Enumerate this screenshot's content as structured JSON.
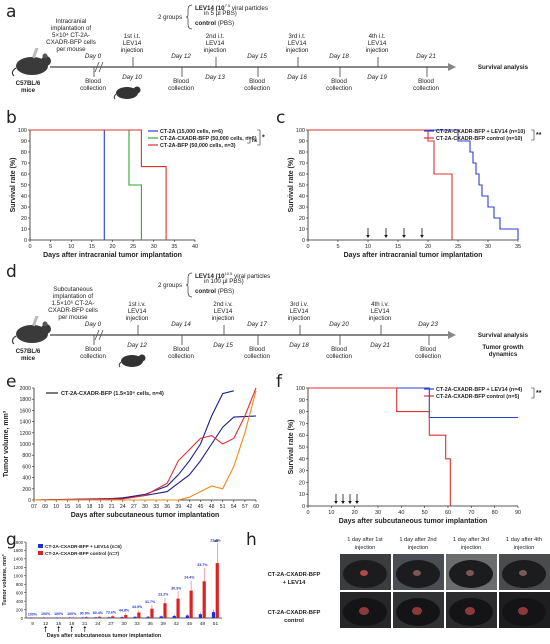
{
  "panels": {
    "a": {
      "letter": "a",
      "groups_label": "2 groups",
      "treat_line": "LEV14 (10",
      "treat_exp": "7.5",
      "treat_rest": " viral particles",
      "treat_line2": "in 5 µl PBS)",
      "control_line": "control (PBS)",
      "implant_text": [
        "Intracranial",
        "implantation of",
        "5×10⁴ CT-2A-",
        "CXADR-BFP cells",
        "per mouse"
      ],
      "mouse_label": [
        "C57BL/6",
        "mice"
      ],
      "survival": "Survival analysis",
      "events": [
        {
          "day": "Day 0",
          "label": [
            "Blood",
            "collection"
          ],
          "pos": "below"
        },
        {
          "day": "Day 10",
          "label": [
            "1st i.t.",
            "LEV14",
            "injection"
          ],
          "pos": "above"
        },
        {
          "day": "Day 12",
          "label": [
            "Blood",
            "collection"
          ],
          "pos": "below"
        },
        {
          "day": "Day 13",
          "label": [
            "2nd i.t.",
            "LEV14",
            "injection"
          ],
          "pos": "above"
        },
        {
          "day": "Day 15",
          "label": [
            "Blood",
            "collection"
          ],
          "pos": "below"
        },
        {
          "day": "Day 16",
          "label": [
            "3rd i.t.",
            "LEV14",
            "injection"
          ],
          "pos": "above"
        },
        {
          "day": "Day 18",
          "label": [
            "Blood",
            "collection"
          ],
          "pos": "below"
        },
        {
          "day": "Day 19",
          "label": [
            "4th i.t.",
            "LEV14",
            "injection"
          ],
          "pos": "above"
        },
        {
          "day": "Day 21",
          "label": [
            "Blood",
            "collection"
          ],
          "pos": "below"
        }
      ]
    },
    "d": {
      "letter": "d",
      "groups_label": "2 groups",
      "treat_line": "LEV14 (10",
      "treat_exp": "10.5",
      "treat_rest": " viral particles",
      "treat_line2": "in 100 µl PBS)",
      "control_line": "control (PBS)",
      "implant_text": [
        "Subcutaneous",
        "implantation of",
        "1.5×10⁶ CT-2A-",
        "CXADR-BFP cells",
        "per mouse"
      ],
      "mouse_label": [
        "C57BL/6",
        "mice"
      ],
      "survival": "Survival analysis",
      "tumor_growth": [
        "Tumor growth",
        "dynamics"
      ],
      "events": [
        {
          "day": "Day 0",
          "label": [
            "Blood",
            "collection"
          ],
          "pos": "below"
        },
        {
          "day": "Day 12",
          "label": [
            "1st i.v.",
            "LEV14",
            "injection"
          ],
          "pos": "above"
        },
        {
          "day": "Day 14",
          "label": [
            "Blood",
            "collection"
          ],
          "pos": "below"
        },
        {
          "day": "Day 15",
          "label": [
            "2nd i.v.",
            "LEV14",
            "injection"
          ],
          "pos": "above"
        },
        {
          "day": "Day 17",
          "label": [
            "Blood",
            "collection"
          ],
          "pos": "below"
        },
        {
          "day": "Day 18",
          "label": [
            "3rd i.v.",
            "LEV14",
            "injection"
          ],
          "pos": "above"
        },
        {
          "day": "Day 20",
          "label": [
            "Blood",
            "collection"
          ],
          "pos": "below"
        },
        {
          "day": "Day 21",
          "label": [
            "4th i.v.",
            "LEV14",
            "injection"
          ],
          "pos": "above"
        },
        {
          "day": "Day 23",
          "label": [
            "Blood",
            "collection"
          ],
          "pos": "below"
        }
      ]
    },
    "h": {
      "letter": "h",
      "columns": [
        "1 day after 1st injection",
        "1 day after 2nd injection",
        "1 day after 3rd injection",
        "1 day after 4th injection"
      ],
      "rows": [
        "CT-2A-CXADR-BFP + LEV14",
        "CT-2A-CXADR-BFP control"
      ]
    }
  },
  "chart_data": [
    {
      "id": "b",
      "type": "line",
      "xlabel": "Days after intracranial tumor implantation",
      "ylabel": "Survival rate (%)",
      "xlim": [
        0,
        40
      ],
      "ylim": [
        0,
        100
      ],
      "xticks": [
        0,
        5,
        10,
        15,
        20,
        25,
        30,
        35,
        40
      ],
      "yticks": [
        0,
        10,
        20,
        30,
        40,
        50,
        60,
        70,
        80,
        90,
        100
      ],
      "series": [
        {
          "name": "CT-2A (15,000 cells, n=6)",
          "color": "#2b3fd6",
          "steps": [
            [
              0,
              100
            ],
            [
              18,
              100
            ],
            [
              18,
              0
            ]
          ]
        },
        {
          "name": "CT-2A-CXADR-BFP (50,000 cells, n=6)",
          "color": "#2ea82e",
          "steps": [
            [
              0,
              100
            ],
            [
              24,
              100
            ],
            [
              24,
              50
            ],
            [
              27,
              50
            ],
            [
              27,
              0
            ]
          ]
        },
        {
          "name": "CT-2A-BFP (50,000 cells, n=3)",
          "color": "#e03030",
          "steps": [
            [
              0,
              100
            ],
            [
              27,
              100
            ],
            [
              27,
              66.7
            ],
            [
              33,
              66.7
            ],
            [
              33,
              0
            ]
          ]
        }
      ],
      "annotations": [
        "ns",
        "*"
      ]
    },
    {
      "id": "c",
      "type": "line",
      "xlabel": "Days after intracranial tumor implantation",
      "ylabel": "Survival rate (%)",
      "xlim": [
        0,
        35
      ],
      "ylim": [
        0,
        100
      ],
      "xticks": [
        0,
        5,
        10,
        15,
        20,
        25,
        30,
        35
      ],
      "yticks": [
        0,
        10,
        20,
        30,
        40,
        50,
        60,
        70,
        80,
        90,
        100
      ],
      "arrows_at": [
        10,
        13,
        16,
        19
      ],
      "series": [
        {
          "name": "CT-2A-CXADR-BFP + LEV14 (n=10)",
          "color": "#2b3fd6",
          "steps": [
            [
              0,
              100
            ],
            [
              25,
              100
            ],
            [
              25,
              90
            ],
            [
              27,
              90
            ],
            [
              27,
              80
            ],
            [
              27.5,
              80
            ],
            [
              27.5,
              70
            ],
            [
              28,
              70
            ],
            [
              28,
              60
            ],
            [
              28.5,
              60
            ],
            [
              28.5,
              50
            ],
            [
              29,
              50
            ],
            [
              29,
              40
            ],
            [
              30,
              40
            ],
            [
              30,
              30
            ],
            [
              31,
              30
            ],
            [
              31,
              20
            ],
            [
              32,
              20
            ],
            [
              32,
              10
            ],
            [
              35,
              10
            ],
            [
              35,
              0
            ]
          ]
        },
        {
          "name": "CT-2A-CXADR-BFP control (n=10)",
          "color": "#e03030",
          "steps": [
            [
              0,
              100
            ],
            [
              20,
              100
            ],
            [
              20,
              90
            ],
            [
              21,
              90
            ],
            [
              21,
              60
            ],
            [
              24,
              60
            ],
            [
              24,
              0
            ]
          ]
        }
      ],
      "annotations": [
        "**"
      ]
    },
    {
      "id": "e",
      "type": "line",
      "xlabel": "Days after subcutaneous tumor implantation",
      "ylabel": "Tumor volume, mm³",
      "ylim": [
        0,
        2000
      ],
      "yticks": [
        0,
        200,
        400,
        600,
        800,
        1000,
        1200,
        1400,
        1600,
        1800,
        2000
      ],
      "xticks": [
        "07",
        "09",
        "10",
        "15",
        "16",
        "18",
        "19",
        "21",
        "24",
        "27",
        "30",
        "33",
        "36",
        "39",
        "42",
        "45",
        "48",
        "51",
        "54",
        "57",
        "60"
      ],
      "legend": "CT-2A-CXADR-BFP (1.5×10⁶ cells, n=4)",
      "series": [
        {
          "color": "#1a1f8c",
          "points": [
            [
              0,
              0
            ],
            [
              6,
              10
            ],
            [
              8,
              40
            ],
            [
              10,
              100
            ],
            [
              12,
              250
            ],
            [
              13,
              450
            ],
            [
              14,
              700
            ],
            [
              15,
              1000
            ],
            [
              16,
              1500
            ],
            [
              17,
              1900
            ],
            [
              18,
              1950
            ]
          ]
        },
        {
          "color": "#1a1f8c",
          "points": [
            [
              0,
              0
            ],
            [
              8,
              30
            ],
            [
              10,
              80
            ],
            [
              12,
              150
            ],
            [
              13,
              300
            ],
            [
              14,
              450
            ],
            [
              15,
              700
            ],
            [
              16,
              1000
            ],
            [
              17,
              1300
            ],
            [
              18,
              1480
            ],
            [
              20,
              1500
            ]
          ]
        },
        {
          "color": "#e03030",
          "points": [
            [
              0,
              0
            ],
            [
              8,
              20
            ],
            [
              10,
              80
            ],
            [
              12,
              300
            ],
            [
              13,
              700
            ],
            [
              14,
              900
            ],
            [
              15,
              1100
            ],
            [
              16,
              1150
            ],
            [
              17,
              1000
            ],
            [
              18,
              1100
            ],
            [
              19,
              1500
            ],
            [
              20,
              2000
            ]
          ]
        },
        {
          "color": "#f08a1a",
          "points": [
            [
              0,
              0
            ],
            [
              13,
              0
            ],
            [
              14,
              50
            ],
            [
              15,
              150
            ],
            [
              16,
              250
            ],
            [
              17,
              200
            ],
            [
              18,
              600
            ],
            [
              19,
              1200
            ],
            [
              20,
              1950
            ]
          ]
        }
      ]
    },
    {
      "id": "f",
      "type": "line",
      "xlabel": "Days after subcutaneous tumor implantation",
      "ylabel": "Survival rate (%)",
      "xlim": [
        0,
        90
      ],
      "ylim": [
        0,
        100
      ],
      "xticks": [
        0,
        10,
        20,
        30,
        40,
        50,
        60,
        70,
        80,
        90
      ],
      "yticks": [
        0,
        10,
        20,
        30,
        40,
        50,
        60,
        70,
        80,
        90,
        100
      ],
      "arrows_at": [
        12,
        15,
        18,
        21
      ],
      "series": [
        {
          "name": "CT-2A-CXADR-BFP + LEV14 (n=4)",
          "color": "#2b3fd6",
          "steps": [
            [
              0,
              100
            ],
            [
              52,
              100
            ],
            [
              52,
              75
            ],
            [
              90,
              75
            ]
          ]
        },
        {
          "name": "CT-2A-CXADR-BFP control (n=5)",
          "color": "#e03030",
          "steps": [
            [
              0,
              100
            ],
            [
              38,
              100
            ],
            [
              38,
              80
            ],
            [
              52,
              80
            ],
            [
              52,
              60
            ],
            [
              59,
              60
            ],
            [
              59,
              40
            ],
            [
              61,
              40
            ],
            [
              61,
              0
            ]
          ]
        }
      ],
      "annotations": [
        "**"
      ]
    },
    {
      "id": "g",
      "type": "bar",
      "xlabel": "Days after subcutaneous tumor implantation",
      "ylabel": "Tumor volume, mm³",
      "ylim": [
        0,
        1800
      ],
      "yticks": [
        0,
        200,
        400,
        600,
        800,
        1000,
        1200,
        1400,
        1600,
        1800
      ],
      "categories": [
        "9",
        "12",
        "15",
        "18",
        "21",
        "24",
        "27",
        "30",
        "33",
        "36",
        "39",
        "42",
        "45",
        "48",
        "51"
      ],
      "arrows_at": [
        "12",
        "15",
        "18",
        "21"
      ],
      "series": [
        {
          "name": "CT-2A-CXADR-BFP + LEV14 (n=6)",
          "color": "#1f2fd8",
          "values": [
            5,
            6,
            8,
            10,
            12,
            15,
            18,
            22,
            28,
            30,
            40,
            50,
            60,
            90,
            140
          ]
        },
        {
          "name": "CT-2A-CXADR-BFP control (n=7)",
          "color": "#e02020",
          "values": [
            5,
            6,
            8,
            12,
            20,
            30,
            40,
            70,
            130,
            220,
            350,
            460,
            650,
            870,
            1300
          ]
        }
      ],
      "labels": [
        "100%",
        "100%",
        "100%",
        "100%",
        "90.9%",
        "80.4%",
        "73.6%",
        "44.8%",
        "44.9%",
        "31.7%",
        "23.2%",
        "30.3%",
        "24.4%",
        "33.7%",
        "22.2%"
      ],
      "annotations": [
        "**"
      ]
    }
  ]
}
